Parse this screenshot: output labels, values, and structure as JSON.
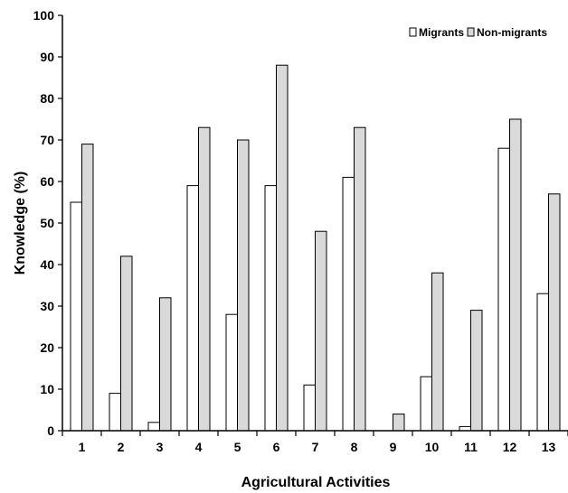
{
  "chart_data": {
    "type": "bar",
    "title": "",
    "xlabel": "Agricultural Activities",
    "ylabel": "Knowledge (%)",
    "ylim": [
      0,
      100
    ],
    "yticks": [
      0,
      10,
      20,
      30,
      40,
      50,
      60,
      70,
      80,
      90,
      100
    ],
    "categories": [
      "1",
      "2",
      "3",
      "4",
      "5",
      "6",
      "7",
      "8",
      "9",
      "10",
      "11",
      "12",
      "13"
    ],
    "series": [
      {
        "name": "Migrants",
        "color": "#ffffff",
        "values": [
          55,
          9,
          2,
          59,
          28,
          59,
          11,
          61,
          0,
          13,
          1,
          68,
          33
        ]
      },
      {
        "name": "Non-migrants",
        "color": "#d9d9d9",
        "values": [
          69,
          42,
          32,
          73,
          70,
          88,
          48,
          73,
          4,
          38,
          29,
          75,
          57
        ]
      }
    ],
    "grid": false,
    "legend_position": "top-right"
  }
}
